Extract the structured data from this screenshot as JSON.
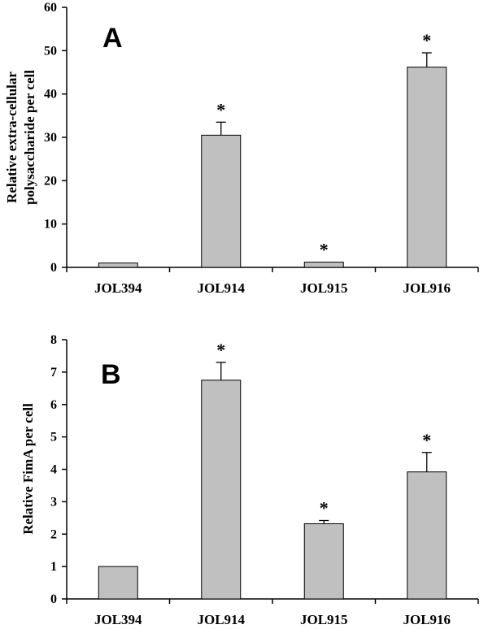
{
  "chart_data": [
    {
      "type": "bar",
      "panel": "A",
      "categories": [
        "JOL394",
        "JOL914",
        "JOL915",
        "JOL916"
      ],
      "values": [
        1,
        30.5,
        1.2,
        46.2
      ],
      "errors": [
        0,
        3.0,
        0,
        3.3
      ],
      "significance": [
        "",
        "*",
        "*",
        "*"
      ],
      "ylabel_lines": [
        "Relative extra-cellular",
        "polysaccharide per cell"
      ],
      "ylim": [
        0,
        60
      ],
      "yticks": [
        0,
        10,
        20,
        30,
        40,
        50,
        60
      ],
      "bar_color": "#c0c0c0"
    },
    {
      "type": "bar",
      "panel": "B",
      "categories": [
        "JOL394",
        "JOL914",
        "JOL915",
        "JOL916"
      ],
      "values": [
        1,
        6.75,
        2.32,
        3.92
      ],
      "errors": [
        0,
        0.55,
        0.1,
        0.6
      ],
      "significance": [
        "",
        "*",
        "*",
        "*"
      ],
      "ylabel_lines": [
        "Relative FimA per cell"
      ],
      "ylim": [
        0,
        8
      ],
      "yticks": [
        0,
        1,
        2,
        3,
        4,
        5,
        6,
        7,
        8
      ],
      "bar_color": "#c0c0c0"
    }
  ]
}
